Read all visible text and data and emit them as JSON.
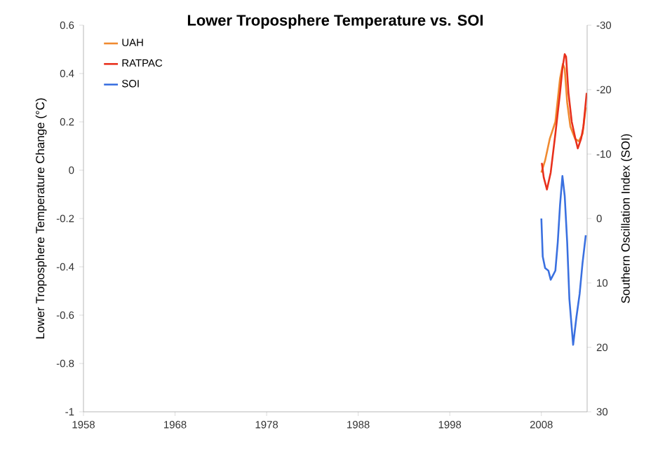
{
  "chart_data": {
    "type": "line",
    "title": "Lower Troposphere Temperature vs. SOI",
    "ylabel": "Lower Troposphere Temperature Change (°C)",
    "y2label": "Southern Oscillation Index (SOI)",
    "xlim": [
      1958,
      2013
    ],
    "xticks": [
      1958,
      1968,
      1978,
      1988,
      1998,
      2008
    ],
    "ylim": [
      -1,
      0.6
    ],
    "yticks": [
      -1,
      -0.8,
      -0.6,
      -0.4,
      -0.2,
      0,
      0.2,
      0.4,
      0.6
    ],
    "y2lim": [
      30,
      -30
    ],
    "y2ticks": [
      30,
      20,
      10,
      0,
      -10,
      -20,
      -30
    ],
    "legend": "top left",
    "grid": false,
    "series": [
      {
        "name": "UAH",
        "color": "#f08a30",
        "x": [
          2008.0,
          2008.41,
          2008.92,
          2009.53,
          2010.04,
          2010.35,
          2010.55,
          2010.82,
          2011.17,
          2011.68,
          2012.09,
          2012.5,
          2012.85
        ],
        "values": [
          -0.01,
          0.04,
          0.13,
          0.2,
          0.38,
          0.44,
          0.42,
          0.28,
          0.18,
          0.13,
          0.12,
          0.15,
          0.26
        ]
      },
      {
        "name": "RATPAC",
        "color": "#e8301c",
        "x": [
          2008.05,
          2008.26,
          2008.61,
          2009.02,
          2009.53,
          2010.04,
          2010.3,
          2010.55,
          2010.7,
          2010.96,
          2011.32,
          2011.72,
          2011.98,
          2012.34,
          2012.59,
          2012.95
        ],
        "values": [
          0.03,
          -0.03,
          -0.08,
          -0.01,
          0.15,
          0.32,
          0.42,
          0.48,
          0.47,
          0.32,
          0.2,
          0.13,
          0.09,
          0.13,
          0.18,
          0.32
        ]
      },
      {
        "name": "SOI",
        "color": "#3a70e0",
        "axis": "y2",
        "x": [
          2008.0,
          2008.15,
          2008.41,
          2008.77,
          2009.02,
          2009.28,
          2009.53,
          2009.79,
          2010.04,
          2010.3,
          2010.55,
          2010.82,
          2011.06,
          2011.47,
          2011.83,
          2012.18,
          2012.49,
          2012.85
        ],
        "values": [
          0,
          5.9,
          7.7,
          8.1,
          9.5,
          8.8,
          8.1,
          3.7,
          -2.1,
          -6.6,
          -3.5,
          3.7,
          12.5,
          19.6,
          15.3,
          11.7,
          7.0,
          2.6
        ]
      }
    ]
  }
}
